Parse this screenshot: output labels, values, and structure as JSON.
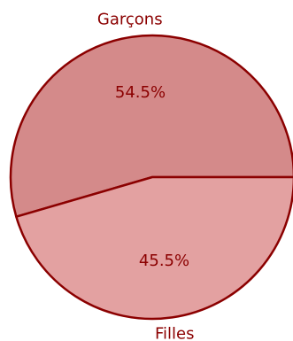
{
  "chart_data": {
    "type": "pie",
    "labels": [
      "Garçons",
      "Filles"
    ],
    "values": [
      54.5,
      45.5
    ],
    "value_labels": [
      "54.5%",
      "45.5%"
    ],
    "colors": [
      "#d48a8a",
      "#e3a1a1"
    ],
    "edge_color": "#8b0000",
    "text_color": "#8b0000",
    "start_angle_deg": 0,
    "direction": "counterclockwise"
  }
}
